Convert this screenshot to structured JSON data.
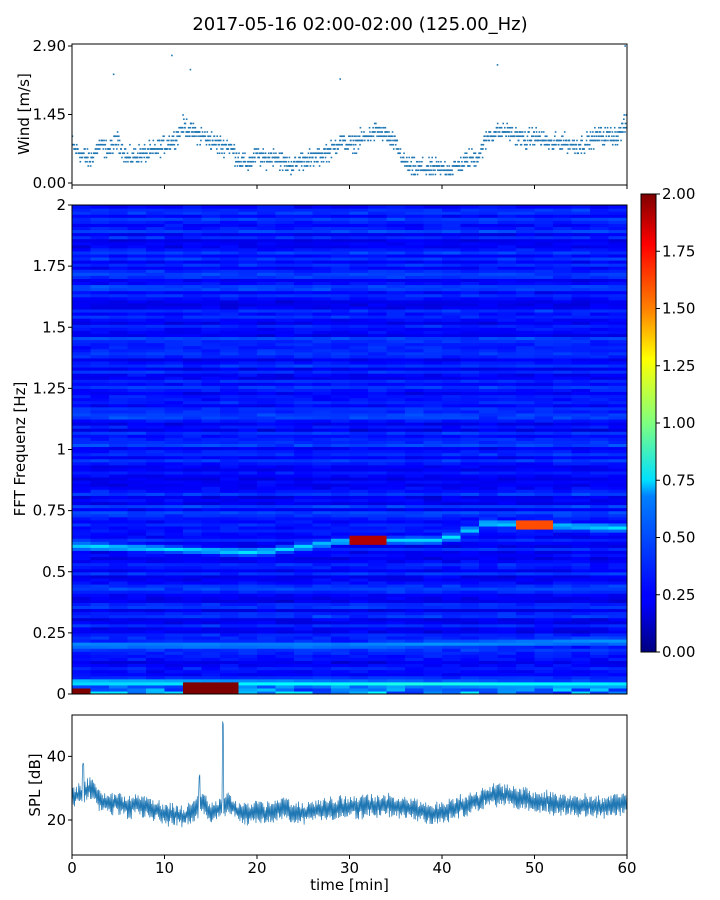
{
  "figure": {
    "title": "2017-05-16 02:00-02:00 (125.00_Hz)",
    "xlabel": "time [min]"
  },
  "chart_data": [
    {
      "type": "scatter",
      "panel": "wind",
      "ylabel": "Wind [m/s]",
      "xlim": [
        0,
        60
      ],
      "ylim": [
        0,
        2.9
      ],
      "yticks": [
        "0.00",
        "1.45",
        "2.90"
      ],
      "color": "#1f77b4",
      "x": [
        0,
        1,
        2,
        3,
        4,
        5,
        6,
        7,
        8,
        9,
        10,
        11,
        12,
        13,
        14,
        15,
        16,
        17,
        18,
        19,
        20,
        21,
        22,
        23,
        24,
        25,
        26,
        27,
        28,
        29,
        30,
        31,
        32,
        33,
        34,
        35,
        36,
        37,
        38,
        39,
        40,
        41,
        42,
        43,
        44,
        45,
        46,
        47,
        48,
        49,
        50,
        51,
        52,
        53,
        54,
        55,
        56,
        57,
        58,
        59,
        60
      ],
      "y": [
        0.8,
        0.6,
        0.5,
        0.8,
        0.7,
        0.9,
        0.5,
        0.6,
        0.6,
        0.7,
        0.8,
        0.9,
        1.2,
        1.1,
        1.0,
        0.9,
        0.8,
        0.8,
        0.5,
        0.4,
        0.6,
        0.5,
        0.6,
        0.4,
        0.4,
        0.5,
        0.5,
        0.6,
        0.7,
        0.9,
        0.8,
        0.9,
        1.0,
        1.1,
        1.0,
        0.8,
        0.4,
        0.3,
        0.3,
        0.3,
        0.3,
        0.3,
        0.4,
        0.5,
        0.6,
        1.0,
        1.1,
        1.1,
        1.0,
        0.9,
        1.0,
        0.9,
        0.8,
        0.9,
        0.8,
        0.8,
        0.9,
        1.0,
        1.0,
        1.0,
        1.3
      ],
      "peaks": [
        {
          "x": 10.8,
          "y": 2.7
        },
        {
          "x": 12.8,
          "y": 2.4
        },
        {
          "x": 4.5,
          "y": 2.3
        },
        {
          "x": 29,
          "y": 2.2
        },
        {
          "x": 46,
          "y": 2.5
        },
        {
          "x": 59.8,
          "y": 2.9
        }
      ]
    },
    {
      "type": "heatmap",
      "panel": "spectrogram",
      "ylabel": "FFT Frequenz [Hz]",
      "xlim": [
        0,
        60
      ],
      "ylim": [
        0,
        2
      ],
      "yticks": [
        "0",
        "0.25",
        "0.5",
        "0.75",
        "1",
        "1.25",
        "1.5",
        "1.75",
        "2"
      ],
      "colormap": "jet",
      "clim": [
        0,
        2
      ],
      "colorbar_ticks": [
        "0.00",
        "0.25",
        "0.50",
        "0.75",
        "1.00",
        "1.25",
        "1.50",
        "1.75",
        "2.00"
      ],
      "background_level": 0.2,
      "ridges": [
        {
          "points": [
            [
              0,
              0.61
            ],
            [
              20,
              0.58
            ],
            [
              30,
              0.63
            ],
            [
              40,
              0.63
            ],
            [
              45,
              0.7
            ],
            [
              60,
              0.68
            ]
          ],
          "level": 0.7
        },
        {
          "points": [
            [
              0,
              0.2
            ],
            [
              30,
              0.2
            ],
            [
              60,
              0.22
            ]
          ],
          "level": 0.55
        },
        {
          "points": [
            [
              0,
              0.05
            ],
            [
              60,
              0.04
            ]
          ],
          "level": 0.8
        }
      ],
      "hotspots": [
        {
          "t0": 11.5,
          "t1": 17.8,
          "f0": 0.0,
          "f1": 0.05,
          "level": 2.0
        },
        {
          "t0": 0,
          "t1": 2,
          "f0": 0.0,
          "f1": 0.02,
          "level": 2.0
        },
        {
          "t0": 31,
          "t1": 34,
          "f0": 0.62,
          "f1": 0.64,
          "level": 1.9
        },
        {
          "t0": 49,
          "t1": 52,
          "f0": 0.68,
          "f1": 0.71,
          "level": 1.6
        }
      ]
    },
    {
      "type": "line",
      "panel": "spl",
      "ylabel": "SPL [dB]",
      "xlim": [
        0,
        60
      ],
      "ylim": [
        9,
        53
      ],
      "xticks": [
        "0",
        "10",
        "20",
        "30",
        "40",
        "50",
        "60"
      ],
      "yticks": [
        "20",
        "40"
      ],
      "color": "#1f77b4",
      "x": [
        0,
        1,
        2,
        3,
        4,
        5,
        6,
        7,
        8,
        9,
        10,
        11,
        12,
        13,
        14,
        15,
        16,
        17,
        18,
        19,
        20,
        21,
        22,
        23,
        24,
        25,
        26,
        27,
        28,
        29,
        30,
        31,
        32,
        33,
        34,
        35,
        36,
        37,
        38,
        39,
        40,
        41,
        42,
        43,
        44,
        45,
        46,
        47,
        48,
        49,
        50,
        51,
        52,
        53,
        54,
        55,
        56,
        57,
        58,
        59,
        60
      ],
      "y": [
        27,
        28,
        30,
        26,
        25,
        25,
        24,
        25,
        24,
        23,
        22,
        22,
        21,
        22,
        26,
        22,
        24,
        25,
        22,
        22,
        23,
        22,
        23,
        24,
        22,
        22,
        23,
        23,
        24,
        24,
        24,
        24,
        25,
        24,
        25,
        24,
        24,
        23,
        23,
        22,
        22,
        23,
        24,
        25,
        26,
        28,
        28,
        28,
        27,
        27,
        26,
        26,
        25,
        25,
        25,
        24,
        25,
        24,
        24,
        25,
        25
      ],
      "band": 3,
      "spikes": [
        {
          "x": 1.2,
          "y": 38
        },
        {
          "x": 13.8,
          "y": 35
        },
        {
          "x": 16.3,
          "y": 51
        }
      ]
    }
  ]
}
